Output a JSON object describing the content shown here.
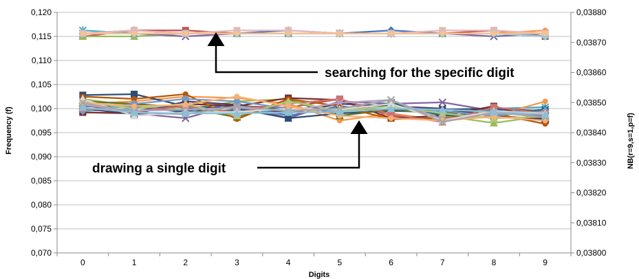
{
  "chart_data": {
    "type": "line",
    "xlabel": "Digits",
    "ylabel": "Frequency (f)",
    "y2label": "NB(r=9,s=1,p=f)",
    "categories": [
      "0",
      "1",
      "2",
      "3",
      "4",
      "5",
      "6",
      "7",
      "8",
      "9"
    ],
    "ylim": [
      0.07,
      0.12
    ],
    "y_ticks": [
      "0,070",
      "0,075",
      "0,080",
      "0,085",
      "0,090",
      "0,095",
      "0,100",
      "0,105",
      "0,110",
      "0,115",
      "0,120"
    ],
    "y2lim": [
      0.038,
      0.0388
    ],
    "y2_ticks": [
      "0,03800",
      "0,03810",
      "0,03820",
      "0,03830",
      "0,03840",
      "0,03850",
      "0,03860",
      "0,03870",
      "0,03880"
    ],
    "grid": "horizontal",
    "annotations": [
      {
        "text": "searching for the specific digit",
        "points_to_x": "3",
        "points_to_y2": 0.03873
      },
      {
        "text": "drawing a single digit",
        "points_to_x": "5.4",
        "points_to_y": 0.0975
      }
    ],
    "series_axis_left": [
      {
        "color": "#4472C4",
        "marker": "diamond",
        "values": [
          0.1005,
          0.1008,
          0.0995,
          0.101,
          0.0985,
          0.1005,
          0.0995,
          0.0992,
          0.0998,
          0.099
        ]
      },
      {
        "color": "#C0504D",
        "marker": "square",
        "values": [
          0.0998,
          0.101,
          0.099,
          0.1005,
          0.1002,
          0.102,
          0.0985,
          0.0978,
          0.1005,
          0.0975
        ]
      },
      {
        "color": "#9BBB59",
        "marker": "triangle",
        "values": [
          0.102,
          0.1005,
          0.0998,
          0.1015,
          0.102,
          0.099,
          0.1,
          0.0985,
          0.097,
          0.0985
        ]
      },
      {
        "color": "#8064A2",
        "marker": "x",
        "values": [
          0.1,
          0.099,
          0.098,
          0.101,
          0.098,
          0.1015,
          0.101,
          0.1013,
          0.0995,
          0.0985
        ]
      },
      {
        "color": "#4BACC6",
        "marker": "star",
        "values": [
          0.0995,
          0.1,
          0.1005,
          0.099,
          0.0995,
          0.1,
          0.1008,
          0.099,
          0.1,
          0.1003
        ]
      },
      {
        "color": "#F79646",
        "marker": "circle",
        "values": [
          0.101,
          0.1015,
          0.1025,
          0.1022,
          0.101,
          0.0975,
          0.099,
          0.0975,
          0.0985,
          0.1015
        ]
      },
      {
        "color": "#2C4D75",
        "marker": "square",
        "values": [
          0.1028,
          0.103,
          0.1005,
          0.1,
          0.098,
          0.099,
          0.0995,
          0.0998,
          0.1,
          0.0995
        ]
      },
      {
        "color": "#772C2A",
        "marker": "square",
        "values": [
          0.0992,
          0.099,
          0.101,
          0.1005,
          0.1022,
          0.1018,
          0.098,
          0.0985,
          0.1005,
          0.0975
        ]
      },
      {
        "color": "#5F7530",
        "marker": "triangle",
        "values": [
          0.1015,
          0.101,
          0.1002,
          0.0982,
          0.1018,
          0.0985,
          0.0998,
          0.099,
          0.0995,
          0.098
        ]
      },
      {
        "color": "#4D3B62",
        "marker": "x",
        "values": [
          0.1,
          0.0988,
          0.1015,
          0.1008,
          0.099,
          0.101,
          0.1005,
          0.1,
          0.0985,
          0.0978
        ]
      },
      {
        "color": "#276A7C",
        "marker": "star",
        "values": [
          0.1005,
          0.1003,
          0.0993,
          0.0997,
          0.1002,
          0.0995,
          0.1012,
          0.0985,
          0.099,
          0.0998
        ]
      },
      {
        "color": "#B65708",
        "marker": "circle",
        "values": [
          0.1025,
          0.102,
          0.103,
          0.0978,
          0.102,
          0.1005,
          0.0978,
          0.098,
          0.099,
          0.0968
        ]
      },
      {
        "color": "#729ACA",
        "marker": "diamond",
        "values": [
          0.0995,
          0.101,
          0.102,
          0.1015,
          0.1,
          0.0995,
          0.1005,
          0.0995,
          0.0985,
          0.0995
        ]
      },
      {
        "color": "#CD7371",
        "marker": "square",
        "values": [
          0.1,
          0.0995,
          0.1005,
          0.0992,
          0.101,
          0.102,
          0.0988,
          0.0972,
          0.1003,
          0.099
        ]
      },
      {
        "color": "#AFC97A",
        "marker": "triangle",
        "values": [
          0.1015,
          0.1,
          0.101,
          0.0985,
          0.1015,
          0.0995,
          0.1005,
          0.099,
          0.098,
          0.0983
        ]
      },
      {
        "color": "#B3A2C7",
        "marker": "x",
        "values": [
          0.1008,
          0.0995,
          0.0998,
          0.1002,
          0.0995,
          0.1012,
          0.1018,
          0.0978,
          0.099,
          0.0988
        ]
      },
      {
        "color": "#D9D9D9",
        "marker": "triangle",
        "values": [
          0.102,
          0.0985,
          0.0992,
          0.0993,
          0.1,
          0.0998,
          0.101,
          0.0975,
          0.0995,
          0.099
        ]
      },
      {
        "color": "#F9B074",
        "marker": "circle",
        "values": [
          0.1012,
          0.1005,
          0.1008,
          0.1025,
          0.1005,
          0.0985,
          0.098,
          0.0975,
          0.0983,
          0.0975
        ]
      },
      {
        "color": "#A5A5A5",
        "marker": "x",
        "values": [
          0.1012,
          0.0992,
          0.0988,
          0.1005,
          0.0995,
          0.1,
          0.1018,
          0.0972,
          0.0992,
          0.0982
        ]
      },
      {
        "color": "#8CC0D6",
        "marker": "triangle",
        "values": [
          0.1002,
          0.0992,
          0.099,
          0.099,
          0.0992,
          0.0993,
          0.1,
          0.0998,
          0.0993,
          0.0988
        ]
      }
    ],
    "series_axis_right": [
      {
        "color": "#4472C4",
        "marker": "diamond",
        "values": [
          0.03873,
          0.03874,
          0.03873,
          0.03873,
          0.03874,
          0.03873,
          0.03874,
          0.03873,
          0.03873,
          0.03872
        ]
      },
      {
        "color": "#C0504D",
        "marker": "square",
        "values": [
          0.03872,
          0.03874,
          0.03874,
          0.03873,
          0.03873,
          0.03873,
          0.03873,
          0.03873,
          0.03874,
          0.03872
        ]
      },
      {
        "color": "#9BBB59",
        "marker": "triangle",
        "values": [
          0.03872,
          0.03872,
          0.03873,
          0.03873,
          0.03873,
          0.03873,
          0.03873,
          0.03873,
          0.03873,
          0.03873
        ]
      },
      {
        "color": "#8064A2",
        "marker": "x",
        "values": [
          0.03873,
          0.03873,
          0.03872,
          0.03873,
          0.03873,
          0.03873,
          0.03873,
          0.03873,
          0.03872,
          0.03873
        ]
      },
      {
        "color": "#4BACC6",
        "marker": "star",
        "values": [
          0.03874,
          0.03873,
          0.03873,
          0.03873,
          0.03873,
          0.03873,
          0.03873,
          0.03873,
          0.03873,
          0.03873
        ]
      },
      {
        "color": "#F79646",
        "marker": "circle",
        "values": [
          0.03873,
          0.03873,
          0.03873,
          0.03873,
          0.03873,
          0.03873,
          0.03873,
          0.03873,
          0.03873,
          0.03874
        ]
      },
      {
        "color": "#E6B9B8",
        "marker": "square",
        "values": [
          0.03873,
          0.03874,
          0.03873,
          0.03874,
          0.03874,
          0.03873,
          0.03873,
          0.03874,
          0.03874,
          0.03873
        ]
      },
      {
        "color": "#93CDDD",
        "marker": "diamond",
        "values": [
          0.03873,
          0.03873,
          0.03873,
          0.03873,
          0.03873,
          0.03873,
          0.03873,
          0.03873,
          0.03873,
          0.03872
        ]
      },
      {
        "color": "#FAC090",
        "marker": "circle",
        "values": [
          0.03873,
          0.03873,
          0.03873,
          0.03873,
          0.03873,
          0.03873,
          0.03873,
          0.03873,
          0.03873,
          0.03873
        ]
      }
    ]
  }
}
